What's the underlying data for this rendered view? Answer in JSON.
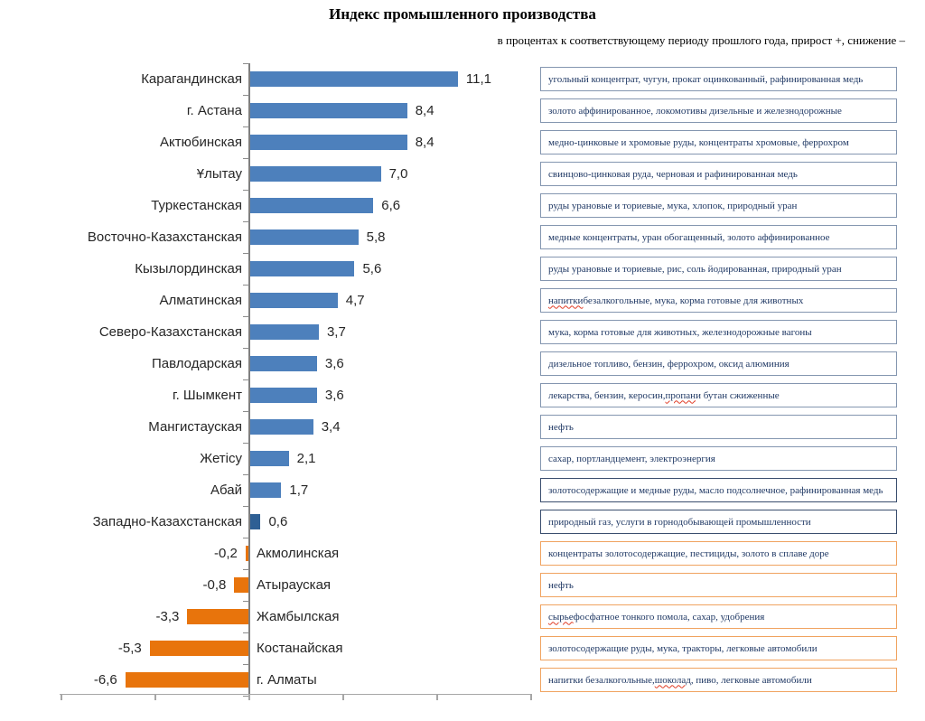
{
  "title": "Индекс промышленного  производства",
  "subtitle": "в процентах к соответствующему периоду  прошлого года, прирост +, снижение –",
  "chart_data": {
    "type": "bar",
    "orientation": "horizontal",
    "value_meaning": "percent change vs same period of previous year",
    "xlim": [
      -10.1,
      15
    ],
    "xticks": [
      -10,
      -5,
      0,
      5,
      10,
      15
    ],
    "xtick_labels_visible": false,
    "grid": false,
    "legend": false,
    "colors": {
      "bar_positive": "#4D80BC",
      "bar_positive_dark": "#2E5F94",
      "bar_negative": "#E8740C",
      "box_border_blue": "#8496B0",
      "box_border_navy": "#3A4E6E",
      "box_border_orange": "#F0A360",
      "annotation_text": "#1F3864",
      "axis_line": "#A6A6A6",
      "zero_line": "#7F7F7F"
    },
    "rows": [
      {
        "region": "Карагандинская",
        "value": 11.1,
        "label": "11,1",
        "box": "blue",
        "products": "угольный концентрат, чугун, прокат оцинкованный, рафинированная медь"
      },
      {
        "region": "г. Астана",
        "value": 8.4,
        "label": "8,4",
        "box": "blue",
        "products": "золото аффинированное, локомотивы дизельные и железнодорожные"
      },
      {
        "region": "Актюбинская",
        "value": 8.4,
        "label": "8,4",
        "box": "blue",
        "products": "медно-цинковые и хромовые руды, концентраты хромовые, феррохром"
      },
      {
        "region": "Ұлытау",
        "value": 7.0,
        "label": "7,0",
        "box": "blue",
        "products": "свинцово-цинковая руда, черновая и рафинированная медь"
      },
      {
        "region": "Туркестанская",
        "value": 6.6,
        "label": "6,6",
        "box": "blue",
        "products": "руды урановые и ториевые, мука, хлопок, природный уран"
      },
      {
        "region": "Восточно-Казахстанская",
        "value": 5.8,
        "label": "5,8",
        "box": "blue",
        "products": "медные концентраты, уран обогащенный, золото аффинированное"
      },
      {
        "region": "Кызылординская",
        "value": 5.6,
        "label": "5,6",
        "box": "blue",
        "products": "руды урановые и ториевые, рис,  соль йодированная, природный уран"
      },
      {
        "region": "Алматинская",
        "value": 4.7,
        "label": "4,7",
        "box": "blue",
        "products": "напитки безалкогольные, мука, корма готовые для животных",
        "misspelled": [
          "напитки"
        ]
      },
      {
        "region": "Северо-Казахстанская",
        "value": 3.7,
        "label": "3,7",
        "box": "blue",
        "products": "мука, корма готовые для животных, железнодорожные вагоны"
      },
      {
        "region": "Павлодарская",
        "value": 3.6,
        "label": "3,6",
        "box": "blue",
        "products": "дизельное топливо, бензин, феррохром, оксид алюминия"
      },
      {
        "region": "г. Шымкент",
        "value": 3.6,
        "label": "3,6",
        "box": "blue",
        "products": "лекарства, бензин, керосин, пропан и бутан сжиженные",
        "misspelled": [
          "пропан"
        ]
      },
      {
        "region": "Мангистауская",
        "value": 3.4,
        "label": "3,4",
        "box": "blue",
        "products": "нефть"
      },
      {
        "region": "Жетісу",
        "value": 2.1,
        "label": "2,1",
        "box": "blue",
        "products": "сахар, портландцемент, электроэнергия"
      },
      {
        "region": "Абай",
        "value": 1.7,
        "label": "1,7",
        "box": "navy",
        "products": "золотосодержащие и медные руды,  масло подсолнечное, рафинированная медь"
      },
      {
        "region": "Западно-Казахстанская",
        "value": 0.6,
        "label": "0,6",
        "box": "navy",
        "bar": "dark",
        "products": "природный газ, услуги в горнодобывающей промышленности"
      },
      {
        "region": "Акмолинская",
        "value": -0.2,
        "label": "-0,2",
        "box": "orange",
        "products": "концентраты золотосодержащие, пестициды, золото в сплаве доре"
      },
      {
        "region": "Атырауская",
        "value": -0.8,
        "label": "-0,8",
        "box": "orange",
        "products": "нефть"
      },
      {
        "region": "Жамбылская",
        "value": -3.3,
        "label": "-3,3",
        "box": "orange",
        "products": "сырье фосфатное тонкого помола, сахар, удобрения",
        "misspelled": [
          "сырье"
        ]
      },
      {
        "region": "Костанайская",
        "value": -5.3,
        "label": "-5,3",
        "box": "orange",
        "products": "золотосодержащие руды, мука, тракторы, легковые автомобили"
      },
      {
        "region": "г. Алматы",
        "value": -6.6,
        "label": "-6,6",
        "box": "orange",
        "products": "напитки безалкогольные, шоколад, пиво, легковые автомобили",
        "misspelled": [
          "шоколад"
        ]
      }
    ]
  }
}
